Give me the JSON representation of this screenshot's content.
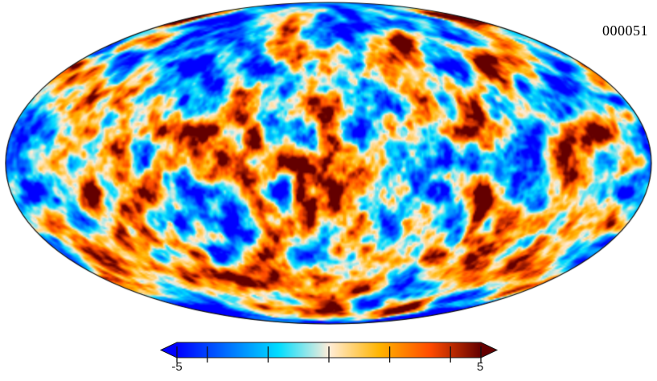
{
  "figure": {
    "label": "000051",
    "background": "#ffffff"
  },
  "chart_data": {
    "type": "heatmap",
    "title": "000051",
    "projection": "mollweide",
    "description": "Full-sky CMB-like Gaussian random temperature field, Mollweide projection, realization 000051",
    "outline_color": "#111111",
    "background": "#ffffff",
    "colormap": {
      "name": "planck-parchment",
      "stops": [
        {
          "pos": 0.0,
          "color": "#0000ff"
        },
        {
          "pos": 0.1667,
          "color": "#0070ff"
        },
        {
          "pos": 0.3333,
          "color": "#00ddff"
        },
        {
          "pos": 0.5,
          "color": "#ffedd9"
        },
        {
          "pos": 0.6667,
          "color": "#ffb400"
        },
        {
          "pos": 0.8333,
          "color": "#ff4b00"
        },
        {
          "pos": 1.0,
          "color": "#640000"
        }
      ]
    },
    "colorbar": {
      "range": [
        -5,
        5
      ],
      "ticks": [
        -5,
        -4,
        -2,
        0,
        2,
        4,
        5
      ],
      "min_label": "-5",
      "max_label": "5",
      "tick_color": "#111111",
      "extend_arrows": "both"
    },
    "field": {
      "kind": "gaussian-random-field",
      "seed": 51,
      "base_frequency": 4.2,
      "octaves": 4,
      "lacunarity": 2.0,
      "gain": 0.55,
      "rms": 2.8,
      "clip": [
        -5,
        5
      ]
    }
  }
}
